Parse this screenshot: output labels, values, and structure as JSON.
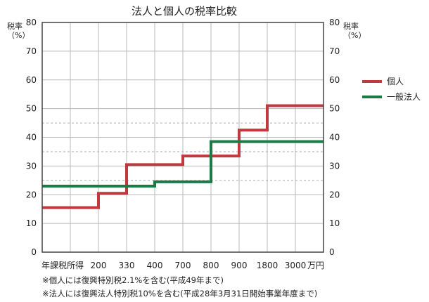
{
  "chart_data": {
    "type": "line",
    "title": "法人と個人の税率比較",
    "ylabel": "税率\n（%）",
    "ylabel_right": "税率\n（%）",
    "ylim": [
      0,
      80
    ],
    "yticks": [
      0,
      10,
      20,
      30,
      40,
      50,
      60,
      70,
      80
    ],
    "xlabel_left": "年課税所得",
    "xticks": [
      "200",
      "330",
      "400",
      "700",
      "800",
      "900",
      "1800",
      "3000"
    ],
    "xunit": "万円",
    "grid": true,
    "legend_position": "right",
    "step": true,
    "reference_lines": [
      25,
      35,
      45
    ],
    "series": [
      {
        "name": "個人",
        "color": "#c0393f",
        "values": [
          15.5,
          20.5,
          30.5,
          30.5,
          33.5,
          33.5,
          42.5,
          51
        ]
      },
      {
        "name": "一般法人",
        "color": "#1c7a45",
        "values": [
          23,
          23,
          23,
          24.5,
          24.5,
          38.5,
          38.5,
          38.5
        ]
      }
    ]
  },
  "notes": [
    "※個人には復興特別税2.1%を含む(平成49年まで)",
    "※法人には復興法人特別税10%を含む(平成28年3月31日開始事業年度まで)"
  ]
}
